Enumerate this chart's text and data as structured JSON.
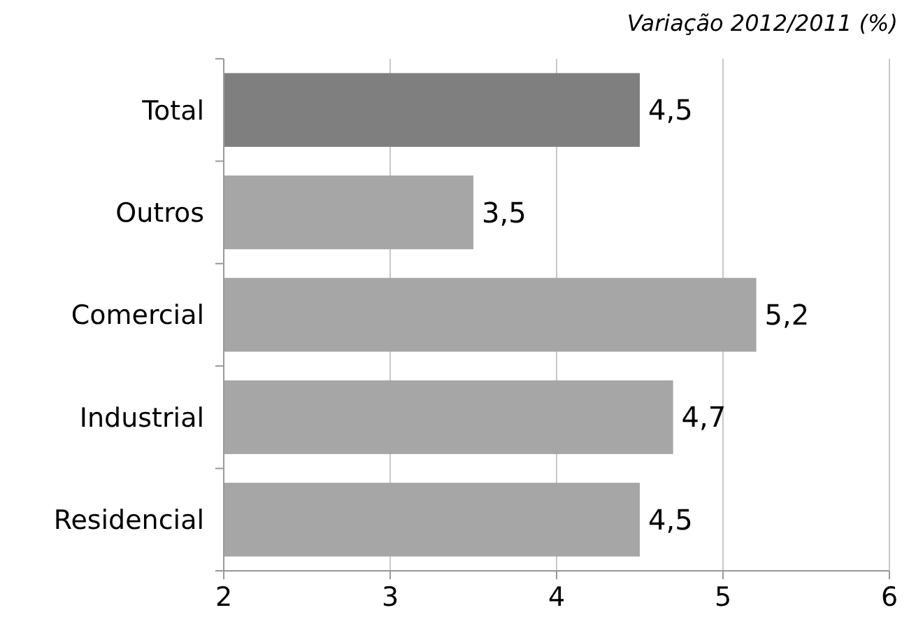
{
  "chart_data": {
    "type": "bar",
    "orientation": "horizontal",
    "title": "Variação 2012/2011 (%)",
    "categories": [
      "Total",
      "Outros",
      "Comercial",
      "Industrial",
      "Residencial"
    ],
    "values": [
      4.5,
      3.5,
      5.2,
      4.7,
      4.5
    ],
    "colors": [
      "#7f7f7f",
      "#a6a6a6",
      "#a6a6a6",
      "#a6a6a6",
      "#a6a6a6"
    ],
    "value_labels": [
      "4,5",
      "3,5",
      "5,2",
      "4,7",
      "4,5"
    ],
    "xlim": [
      2,
      6
    ],
    "xticks": [
      2,
      3,
      4,
      5,
      6
    ],
    "grid": "x"
  }
}
